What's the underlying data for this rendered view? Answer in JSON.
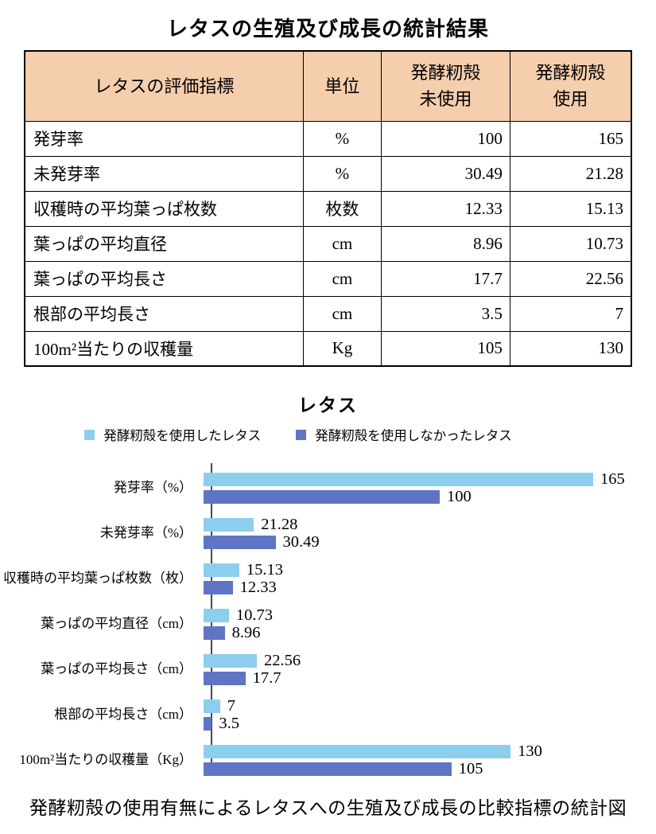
{
  "page": {
    "title": "レタスの生殖及び成長の統計結果",
    "caption": "発酵籾殻の使用有無によるレタスへの生殖及び成長の比較指標の統計図"
  },
  "colors": {
    "table_header_fill": "#f5cead",
    "series_used": "#8dceee",
    "series_unused": "#5f74c4",
    "axis": "#4a4a4a",
    "border": "#000000"
  },
  "table": {
    "columns": [
      {
        "lines": [
          "レタスの評価指標"
        ]
      },
      {
        "lines": [
          "単位"
        ]
      },
      {
        "lines": [
          "発酵籾殻",
          "未使用"
        ]
      },
      {
        "lines": [
          "発酵籾殻",
          "使用"
        ]
      }
    ],
    "rows": [
      {
        "indicator": "発芽率",
        "unit": "%",
        "unused": "100",
        "used": "165"
      },
      {
        "indicator": "未発芽率",
        "unit": "%",
        "unused": "30.49",
        "used": "21.28"
      },
      {
        "indicator": "収穫時の平均葉っぱ枚数",
        "unit": "枚数",
        "unused": "12.33",
        "used": "15.13"
      },
      {
        "indicator": "葉っぱの平均直径",
        "unit": "cm",
        "unused": "8.96",
        "used": "10.73"
      },
      {
        "indicator": "葉っぱの平均長さ",
        "unit": "cm",
        "unused": "17.7",
        "used": "22.56"
      },
      {
        "indicator": "根部の平均長さ",
        "unit": "cm",
        "unused": "3.5",
        "used": "7"
      },
      {
        "indicator": "100m²当たりの収穫量",
        "unit": "Kg",
        "unused": "105",
        "used": "130"
      }
    ]
  },
  "chart_data": {
    "type": "bar",
    "orientation": "horizontal",
    "title": "レタス",
    "categories": [
      "発芽率（%）",
      "未発芽率（%）",
      "収穫時の平均葉っぱ枚数（枚）",
      "葉っぱの平均直径（cm）",
      "葉っぱの平均長さ（cm）",
      "根部の平均長さ（cm）",
      "100m²当たりの収穫量（Kg）"
    ],
    "series": [
      {
        "name": "発酵籾殻を使用したレタス",
        "color": "#8dceee",
        "values": [
          165,
          21.28,
          15.13,
          10.73,
          22.56,
          7,
          130
        ]
      },
      {
        "name": "発酵籾殻を使用しなかったレタス",
        "color": "#5f74c4",
        "values": [
          100,
          30.49,
          12.33,
          8.96,
          17.7,
          3.5,
          105
        ]
      }
    ],
    "xlim": [
      0,
      165
    ],
    "value_labels": true,
    "legend_position": "top",
    "grid": false
  }
}
